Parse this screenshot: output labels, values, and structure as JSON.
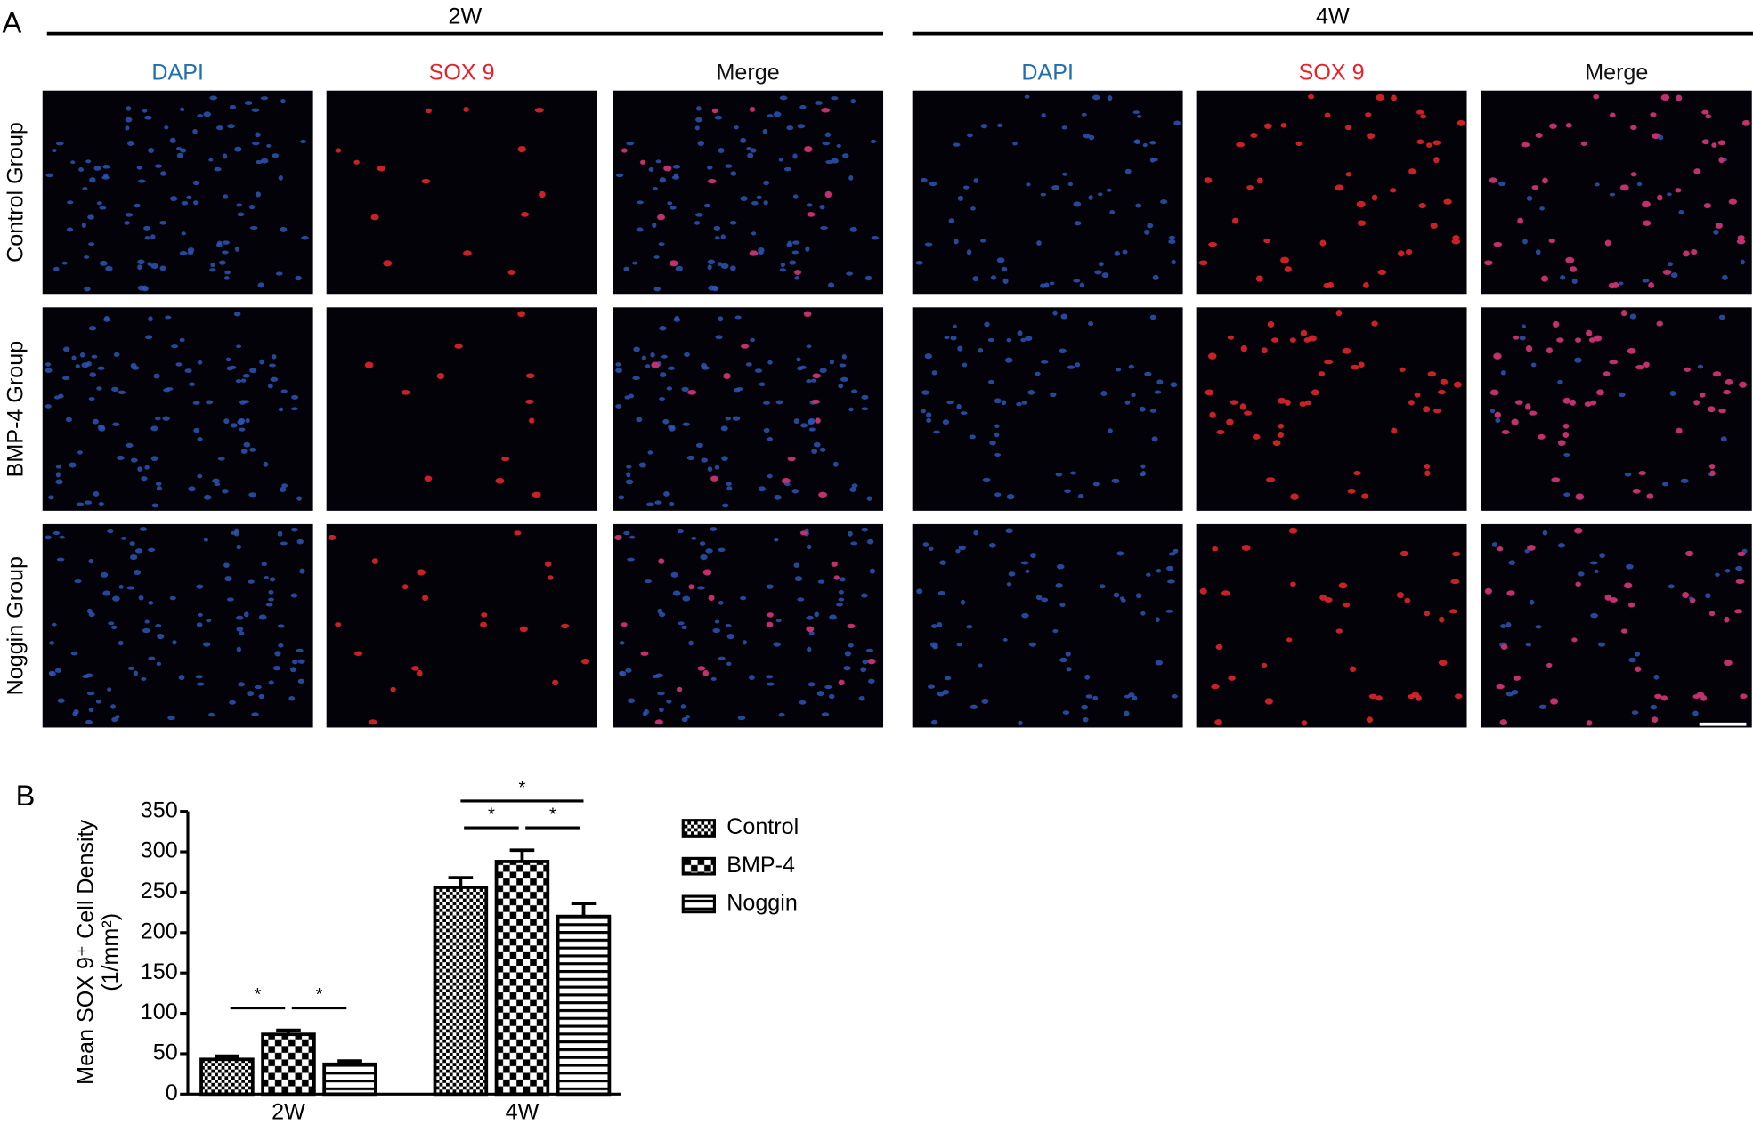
{
  "panel_a": {
    "label": "A",
    "timepoints": [
      {
        "label": "2W",
        "channels": [
          "DAPI",
          "SOX 9",
          "Merge"
        ]
      },
      {
        "label": "4W",
        "channels": [
          "DAPI",
          "SOX 9",
          "Merge"
        ]
      }
    ],
    "rows": [
      "Control Group",
      "BMP-4 Group",
      "Noggin Group"
    ]
  },
  "chart_data": {
    "type": "bar",
    "label": "B",
    "y_label": [
      "Mean SOX 9⁺ Cell Density",
      "(1/mm²)"
    ],
    "categories": [
      "2W",
      "4W"
    ],
    "series": [
      {
        "name": "Control",
        "color": "#000000",
        "pattern": "checker-small",
        "values": [
          43,
          256
        ],
        "errors": [
          4,
          12
        ]
      },
      {
        "name": "BMP-4",
        "color": "#000000",
        "pattern": "checker-large",
        "values": [
          74,
          288
        ],
        "errors": [
          5,
          14
        ]
      },
      {
        "name": "Noggin",
        "color": "#000000",
        "pattern": "hlines",
        "values": [
          37,
          220
        ],
        "errors": [
          4,
          16
        ]
      }
    ],
    "ylim": [
      0,
      350
    ],
    "yticks": [
      0,
      50,
      100,
      150,
      200,
      250,
      300,
      350
    ],
    "annotations": [
      {
        "label": "*",
        "category": "2W",
        "between": [
          "Control",
          "BMP-4"
        ]
      },
      {
        "label": "*",
        "category": "2W",
        "between": [
          "BMP-4",
          "Noggin"
        ]
      },
      {
        "label": "*",
        "category": "4W",
        "between": [
          "Control",
          "BMP-4"
        ]
      },
      {
        "label": "*",
        "category": "4W",
        "between": [
          "BMP-4",
          "Noggin"
        ]
      },
      {
        "label": "*",
        "category": "4W",
        "between": [
          "Control",
          "Noggin"
        ]
      }
    ],
    "legend": "right"
  }
}
